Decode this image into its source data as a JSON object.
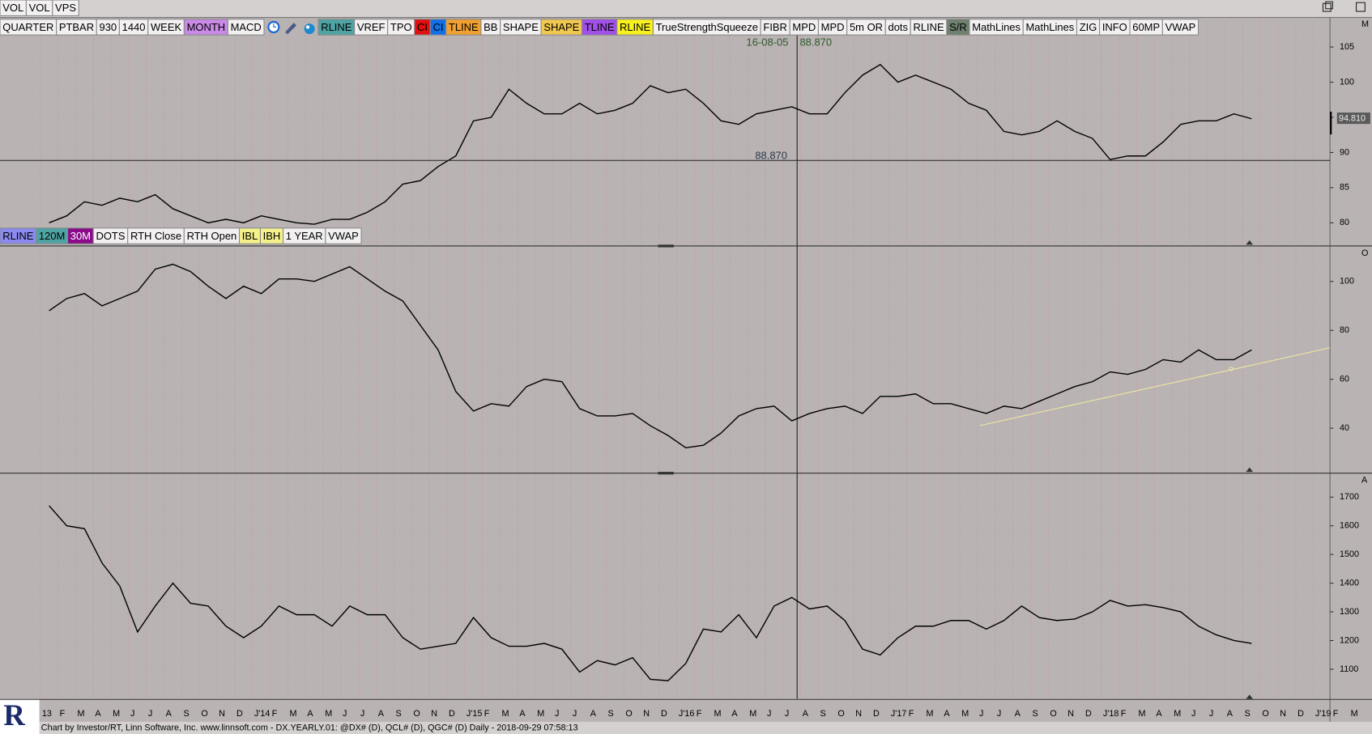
{
  "top_toolbar": {
    "buttons": [
      "VOL",
      "VOL",
      "VPS"
    ]
  },
  "toolbar": {
    "buttons": [
      {
        "label": "QUARTER"
      },
      {
        "label": "PTBAR"
      },
      {
        "label": "930"
      },
      {
        "label": "1440"
      },
      {
        "label": "WEEK"
      },
      {
        "label": "MONTH",
        "color": "#c88ae6"
      },
      {
        "label": "MACD"
      },
      {
        "label": "RLINE",
        "color": "#4fa3a3"
      },
      {
        "label": "VREF"
      },
      {
        "label": "TPO"
      },
      {
        "label": "CI",
        "color": "#e01010"
      },
      {
        "label": "CI",
        "color": "#1070e8"
      },
      {
        "label": "TLINE",
        "color": "#f0a030"
      },
      {
        "label": "BB"
      },
      {
        "label": "SHAPE"
      },
      {
        "label": "SHAPE",
        "color": "#f0c850"
      },
      {
        "label": "TLINE",
        "color": "#a050e8"
      },
      {
        "label": "RLINE",
        "color": "#f8f020"
      },
      {
        "label": "TrueStrengthSqueeze"
      },
      {
        "label": "FIBR"
      },
      {
        "label": "MPD"
      },
      {
        "label": "MPD"
      },
      {
        "label": "5m OR"
      },
      {
        "label": "dots"
      },
      {
        "label": "RLINE"
      },
      {
        "label": "S/R",
        "color": "#6f806f"
      },
      {
        "label": "MathLines"
      },
      {
        "label": "MathLines"
      },
      {
        "label": "ZIG"
      },
      {
        "label": "INFO"
      },
      {
        "label": "60MP"
      },
      {
        "label": "VWAP"
      }
    ]
  },
  "panel_toolbar": {
    "buttons": [
      {
        "label": "RLINE",
        "color": "#8a8af0"
      },
      {
        "label": "120M",
        "color": "#4fa3a3"
      },
      {
        "label": "30M",
        "color": "#8a0a8a",
        "text_color": "#ffffff"
      },
      {
        "label": "DOTS"
      },
      {
        "label": "RTH Close"
      },
      {
        "label": "RTH Open"
      },
      {
        "label": "IBL",
        "color": "#f4f08a"
      },
      {
        "label": "IBH",
        "color": "#f4f08a"
      },
      {
        "label": "1 YEAR"
      },
      {
        "label": "VWAP"
      }
    ]
  },
  "crosshair": {
    "date_label": "16-08-05",
    "value_label": "88.870"
  },
  "panels": [
    {
      "letter": "M",
      "ylim": [
        76.77,
        109.2
      ],
      "yticks": [
        80,
        85,
        90,
        95,
        100,
        105
      ],
      "level": {
        "value": 88.87,
        "label": "88.870"
      },
      "last_price": {
        "value": 94.81,
        "label": "94.810"
      },
      "values": [
        80,
        81,
        83,
        82.5,
        83.5,
        83,
        84,
        82,
        81,
        80,
        80.5,
        80,
        81,
        80.5,
        80,
        79.8,
        80.5,
        80.5,
        81.5,
        83,
        85.5,
        86,
        88,
        89.5,
        94.5,
        95,
        99,
        97,
        95.5,
        95.5,
        97,
        95.5,
        96,
        97,
        99.5,
        98.5,
        99,
        97,
        94.5,
        94,
        95.5,
        96,
        96.5,
        95.5,
        95.5,
        98.5,
        101,
        102.5,
        100,
        101,
        100,
        99,
        97,
        96,
        93,
        92.5,
        93,
        94.5,
        93,
        92,
        89,
        89.5,
        89.5,
        91.5,
        94,
        94.5,
        94.5,
        95.5,
        94.8
      ]
    },
    {
      "letter": "O",
      "ylim": [
        21.8,
        114.3
      ],
      "yticks": [
        40,
        60,
        80,
        100
      ],
      "values": [
        88,
        93,
        95,
        90,
        93,
        96,
        105,
        107,
        104,
        98,
        93,
        98,
        95,
        101,
        101,
        100,
        103,
        106,
        101,
        96,
        92,
        82,
        72,
        55,
        47,
        50,
        49,
        57,
        60,
        59,
        48,
        45,
        45,
        46,
        41,
        37,
        32,
        33,
        38,
        45,
        48,
        49,
        43,
        46,
        48,
        49,
        46,
        53,
        53,
        54,
        50,
        50,
        48,
        46,
        49,
        48,
        51,
        54,
        57,
        59,
        63,
        62,
        64,
        68,
        67,
        72,
        68,
        68,
        72
      ]
    },
    {
      "letter": "A",
      "ylim": [
        996,
        1782
      ],
      "yticks": [
        1100,
        1200,
        1300,
        1400,
        1500,
        1600,
        1700
      ],
      "values": [
        1670,
        1600,
        1590,
        1470,
        1390,
        1230,
        1320,
        1400,
        1330,
        1320,
        1250,
        1210,
        1250,
        1320,
        1290,
        1290,
        1250,
        1320,
        1290,
        1290,
        1210,
        1170,
        1180,
        1190,
        1280,
        1210,
        1180,
        1180,
        1190,
        1170,
        1090,
        1130,
        1115,
        1140,
        1065,
        1060,
        1120,
        1240,
        1230,
        1290,
        1210,
        1320,
        1350,
        1310,
        1320,
        1270,
        1170,
        1150,
        1210,
        1250,
        1250,
        1270,
        1270,
        1240,
        1270,
        1320,
        1280,
        1270,
        1275,
        1300,
        1340,
        1320,
        1325,
        1315,
        1300,
        1250,
        1220,
        1200,
        1190
      ]
    }
  ],
  "x_axis": {
    "labels": [
      "13",
      "F",
      "M",
      "A",
      "M",
      "J",
      "J",
      "A",
      "S",
      "O",
      "N",
      "D",
      "J'14",
      "F",
      "M",
      "A",
      "M",
      "J",
      "J",
      "A",
      "S",
      "O",
      "N",
      "D",
      "J'15",
      "F",
      "M",
      "A",
      "M",
      "J",
      "J",
      "A",
      "S",
      "O",
      "N",
      "D",
      "J'16",
      "F",
      "M",
      "A",
      "M",
      "J",
      "J",
      "A",
      "S",
      "O",
      "N",
      "D",
      "J'17",
      "F",
      "M",
      "A",
      "M",
      "J",
      "J",
      "A",
      "S",
      "O",
      "N",
      "D",
      "J'18",
      "F",
      "M",
      "A",
      "M",
      "J",
      "J",
      "A",
      "S",
      "O",
      "N",
      "D",
      "J'19",
      "F",
      "M"
    ]
  },
  "logo_text": "R",
  "status_bar": "Chart by Investor/RT, Linn Software, Inc. www.linnsoft.com - DX.YEARLY.01: @DX# (D), QCL# (D), QGC# (D) Daily - 2018-09-29 07:58:13"
}
